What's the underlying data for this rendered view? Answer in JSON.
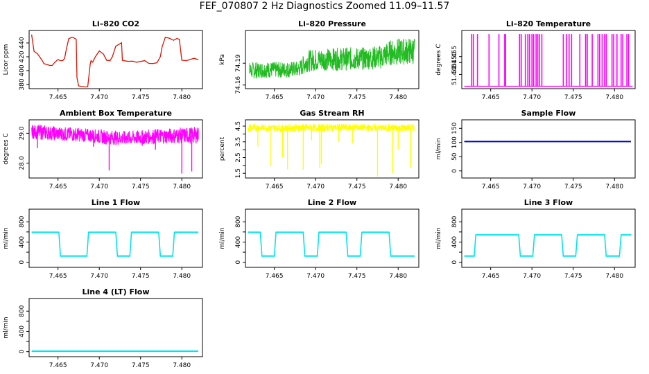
{
  "figure": {
    "title": "FEF_070807  2 Hz Diagnostics Zoomed 11.09–11.57"
  },
  "colors": {
    "co2": "#dd1100",
    "pressure": "#22bb22",
    "temperature": "#ff00ff",
    "box_temp": "#ff00ff",
    "rh": "#ffff00",
    "sample_flow": "#0000cc",
    "line_flow": "#00e5ee"
  },
  "chart_data": [
    {
      "type": "line",
      "id": "co2",
      "title": "Li–820 CO2",
      "ylabel": "Licor ppm",
      "xlabel": "",
      "xlim": [
        7.4615,
        7.4825
      ],
      "ylim": [
        374,
        458
      ],
      "xticks": [
        "7.465",
        "7.470",
        "7.475",
        "7.480"
      ],
      "yticks": [
        "380",
        "400",
        "420",
        "440"
      ],
      "series": [
        {
          "name": "CO2",
          "color_key": "co2",
          "x": [
            7.4618,
            7.4621,
            7.4625,
            7.463,
            7.4633,
            7.4636,
            7.464,
            7.4643,
            7.4646,
            7.465,
            7.4653,
            7.4656,
            7.4658,
            7.466,
            7.4663,
            7.4667,
            7.467,
            7.4672,
            7.4673,
            7.4675,
            7.4678,
            7.4682,
            7.4686,
            7.4689,
            7.469,
            7.4692,
            7.4695,
            7.47,
            7.4705,
            7.4709,
            7.471,
            7.4713,
            7.4716,
            7.472,
            7.4724,
            7.4727,
            7.4728,
            7.4731,
            7.4735,
            7.474,
            7.4745,
            7.475,
            7.4755,
            7.476,
            7.4765,
            7.477,
            7.4772,
            7.4774,
            7.4776,
            7.478,
            7.4785,
            7.479,
            7.4794,
            7.4797,
            7.48,
            7.4804,
            7.4806,
            7.481,
            7.4815,
            7.482
          ],
          "y": [
            452,
            428,
            424,
            416,
            410,
            409,
            407,
            408,
            412,
            416,
            414,
            415,
            418,
            430,
            446,
            448,
            447,
            445,
            390,
            378,
            377,
            376,
            377,
            410,
            414,
            412,
            420,
            428,
            424,
            415,
            415,
            414,
            420,
            436,
            438,
            440,
            415,
            414,
            413,
            414,
            412,
            413,
            414,
            411,
            410,
            412,
            416,
            420,
            434,
            448,
            447,
            444,
            446,
            445,
            415,
            414,
            414,
            416,
            418,
            416
          ]
        }
      ]
    },
    {
      "type": "line",
      "id": "pressure",
      "title": "Li–820 Pressure",
      "ylabel": "kPa",
      "xlabel": "",
      "xlim": [
        7.4615,
        7.4825
      ],
      "ylim": [
        74.155,
        74.235
      ],
      "xticks": [
        "7.465",
        "7.470",
        "7.475",
        "7.480"
      ],
      "yticks": [
        "74.16",
        "74.19"
      ],
      "series": [
        {
          "name": "Pressure",
          "color_key": "pressure",
          "band": true,
          "x": [
            7.462,
            7.464,
            7.466,
            7.468,
            7.469,
            7.47,
            7.472,
            7.474,
            7.476,
            7.478,
            7.479,
            7.48,
            7.481,
            7.482
          ],
          "y_low": [
            74.168,
            74.17,
            74.17,
            74.171,
            74.178,
            74.179,
            74.18,
            74.18,
            74.181,
            74.182,
            74.187,
            74.187,
            74.188,
            74.188
          ],
          "y_high": [
            74.191,
            74.192,
            74.192,
            74.193,
            74.208,
            74.21,
            74.211,
            74.212,
            74.212,
            74.215,
            74.222,
            74.224,
            74.225,
            74.226
          ]
        }
      ]
    },
    {
      "type": "line",
      "id": "temperature",
      "title": "Li–820 Temperature",
      "ylabel": "degrees C",
      "xlabel": "",
      "xlim": [
        7.4615,
        7.4825
      ],
      "ylim": [
        51.428,
        51.477
      ],
      "xticks": [
        "7.465",
        "7.470",
        "7.475",
        "7.480"
      ],
      "yticks": [
        "51.440",
        "51.450",
        "51.455"
      ],
      "series": [
        {
          "name": "Temperature",
          "color_key": "temperature",
          "spikes": true,
          "base": 51.43,
          "peak": 51.474,
          "spike_x": [
            7.4627,
            7.4629,
            7.4634,
            7.4648,
            7.466,
            7.4667,
            7.4668,
            7.4685,
            7.4687,
            7.4692,
            7.4695,
            7.4697,
            7.47,
            7.4702,
            7.4705,
            7.4707,
            7.4709,
            7.4712,
            7.4738,
            7.4742,
            7.4745,
            7.4748,
            7.4758,
            7.4765,
            7.4767,
            7.4773,
            7.478,
            7.4782,
            7.4785,
            7.4788,
            7.479,
            7.4797,
            7.4799,
            7.4803,
            7.4808,
            7.481,
            7.4815,
            7.4817
          ]
        }
      ]
    },
    {
      "type": "line",
      "id": "box_temp",
      "title": "Ambient Box Temperature",
      "ylabel": "degrees C",
      "xlabel": "",
      "xlim": [
        7.4615,
        7.4825
      ],
      "ylim": [
        27.5,
        29.45
      ],
      "xticks": [
        "7.465",
        "7.470",
        "7.475",
        "7.480"
      ],
      "yticks": [
        "28.0",
        "29.0"
      ],
      "series": [
        {
          "name": "Box temperature",
          "color_key": "box_temp",
          "band": true,
          "x": [
            7.4618,
            7.463,
            7.465,
            7.467,
            7.469,
            7.471,
            7.473,
            7.475,
            7.477,
            7.479,
            7.481,
            7.482
          ],
          "y_low": [
            28.82,
            28.78,
            28.75,
            28.72,
            28.7,
            28.62,
            28.6,
            28.62,
            28.65,
            28.66,
            28.65,
            28.66
          ],
          "y_high": [
            29.28,
            29.3,
            29.22,
            29.2,
            29.15,
            29.1,
            29.08,
            29.1,
            29.15,
            29.18,
            29.2,
            29.22
          ],
          "dips": [
            [
              7.4625,
              28.5
            ],
            [
              7.4693,
              28.55
            ],
            [
              7.4712,
              27.75
            ],
            [
              7.4768,
              28.45
            ],
            [
              7.48,
              27.65
            ],
            [
              7.4812,
              27.72
            ],
            [
              7.4752,
              28.58
            ]
          ]
        }
      ]
    },
    {
      "type": "line",
      "id": "rh",
      "title": "Gas Stream RH",
      "ylabel": "percent",
      "xlabel": "",
      "xlim": [
        7.4615,
        7.4825
      ],
      "ylim": [
        1.2,
        4.9
      ],
      "xticks": [
        "7.465",
        "7.470",
        "7.475",
        "7.480"
      ],
      "yticks": [
        "1.5",
        "2.5",
        "3.5",
        "4.5"
      ],
      "yticks_extra": [
        "2.0",
        "3.0",
        "4.0"
      ],
      "series": [
        {
          "name": "RH",
          "color_key": "rh",
          "band": true,
          "x": [
            7.4618,
            7.464,
            7.466,
            7.468,
            7.47,
            7.472,
            7.474,
            7.476,
            7.478,
            7.48,
            7.482
          ],
          "y_low": [
            4.15,
            4.18,
            4.16,
            4.14,
            4.16,
            4.18,
            4.2,
            4.19,
            4.16,
            4.15,
            4.18
          ],
          "y_high": [
            4.65,
            4.62,
            4.6,
            4.66,
            4.62,
            4.64,
            4.66,
            4.62,
            4.6,
            4.64,
            4.62
          ],
          "dips": [
            [
              7.463,
              3.2
            ],
            [
              7.4645,
              1.95
            ],
            [
              7.466,
              2.5
            ],
            [
              7.4666,
              1.75
            ],
            [
              7.4685,
              1.72
            ],
            [
              7.4695,
              3.6
            ],
            [
              7.4705,
              1.85
            ],
            [
              7.4707,
              2.1
            ],
            [
              7.4728,
              3.5
            ],
            [
              7.4745,
              3.4
            ],
            [
              7.4775,
              1.3
            ],
            [
              7.4793,
              1.5
            ],
            [
              7.48,
              3.0
            ],
            [
              7.4815,
              1.85
            ]
          ]
        }
      ]
    },
    {
      "type": "line",
      "id": "sample_flow",
      "title": "Sample Flow",
      "ylabel": "ml/min",
      "xlabel": "",
      "xlim": [
        7.4615,
        7.4825
      ],
      "ylim": [
        -25,
        180
      ],
      "xticks": [
        "7.465",
        "7.470",
        "7.475",
        "7.480"
      ],
      "yticks": [
        "0",
        "50",
        "100",
        "150"
      ],
      "series": [
        {
          "name": "Sample flow",
          "color_key": "sample_flow",
          "x": [
            7.4618,
            7.482
          ],
          "y": [
            103,
            103
          ]
        }
      ]
    },
    {
      "type": "line",
      "id": "line1",
      "title": "Line 1 Flow",
      "ylabel": "ml/min",
      "xlabel": "",
      "xlim": [
        7.4615,
        7.4825
      ],
      "ylim": [
        -100,
        1050
      ],
      "xticks": [
        "7.465",
        "7.470",
        "7.475",
        "7.480"
      ],
      "yticks": [
        "0",
        "400",
        "800"
      ],
      "yticks_extra": [
        "200",
        "600"
      ],
      "series": [
        {
          "name": "Line 1",
          "color_key": "line_flow",
          "x": [
            7.4618,
            7.4651,
            7.4653,
            7.4685,
            7.4687,
            7.472,
            7.4722,
            7.4737,
            7.4739,
            7.4772,
            7.4774,
            7.4789,
            7.4791,
            7.482
          ],
          "y": [
            590,
            590,
            120,
            120,
            590,
            590,
            120,
            120,
            590,
            590,
            120,
            120,
            590,
            590
          ]
        }
      ]
    },
    {
      "type": "line",
      "id": "line2",
      "title": "Line 2 Flow",
      "ylabel": "ml/min",
      "xlabel": "",
      "xlim": [
        7.4615,
        7.4825
      ],
      "ylim": [
        -100,
        1050
      ],
      "xticks": [
        "7.465",
        "7.470",
        "7.475",
        "7.480"
      ],
      "yticks": [
        "0",
        "400",
        "800"
      ],
      "yticks_extra": [
        "200",
        "600"
      ],
      "series": [
        {
          "name": "Line 2",
          "color_key": "line_flow",
          "x": [
            7.4618,
            7.4633,
            7.4635,
            7.465,
            7.4652,
            7.4685,
            7.4687,
            7.4702,
            7.4704,
            7.4737,
            7.4739,
            7.4754,
            7.4756,
            7.4789,
            7.4791,
            7.4806,
            7.4808,
            7.482
          ],
          "y": [
            590,
            590,
            120,
            120,
            590,
            590,
            120,
            120,
            590,
            590,
            120,
            120,
            590,
            590,
            120,
            120,
            120,
            120
          ]
        }
      ]
    },
    {
      "type": "line",
      "id": "line3",
      "title": "Line 3 Flow",
      "ylabel": "ml/min",
      "xlabel": "",
      "xlim": [
        7.4615,
        7.4825
      ],
      "ylim": [
        -100,
        1050
      ],
      "xticks": [
        "7.465",
        "7.470",
        "7.475",
        "7.480"
      ],
      "yticks": [
        "0",
        "400",
        "800"
      ],
      "yticks_extra": [
        "200",
        "600"
      ],
      "series": [
        {
          "name": "Line 3",
          "color_key": "line_flow",
          "x": [
            7.4618,
            7.463,
            7.4632,
            7.4684,
            7.4686,
            7.4701,
            7.4703,
            7.4736,
            7.4738,
            7.4753,
            7.4755,
            7.4788,
            7.479,
            7.4806,
            7.4808,
            7.482
          ],
          "y": [
            120,
            120,
            540,
            540,
            120,
            120,
            540,
            540,
            120,
            120,
            540,
            540,
            120,
            120,
            540,
            540
          ]
        }
      ]
    },
    {
      "type": "line",
      "id": "line4",
      "title": "Line 4 (LT) Flow",
      "ylabel": "ml/min",
      "xlabel": "",
      "xlim": [
        7.4615,
        7.4825
      ],
      "ylim": [
        -100,
        1050
      ],
      "xticks": [
        "7.465",
        "7.470",
        "7.475",
        "7.480"
      ],
      "yticks": [
        "0",
        "400",
        "800"
      ],
      "yticks_extra": [
        "200",
        "600"
      ],
      "series": [
        {
          "name": "Line 4",
          "color_key": "line_flow",
          "x": [
            7.4618,
            7.482
          ],
          "y": [
            5,
            5
          ]
        }
      ]
    }
  ]
}
